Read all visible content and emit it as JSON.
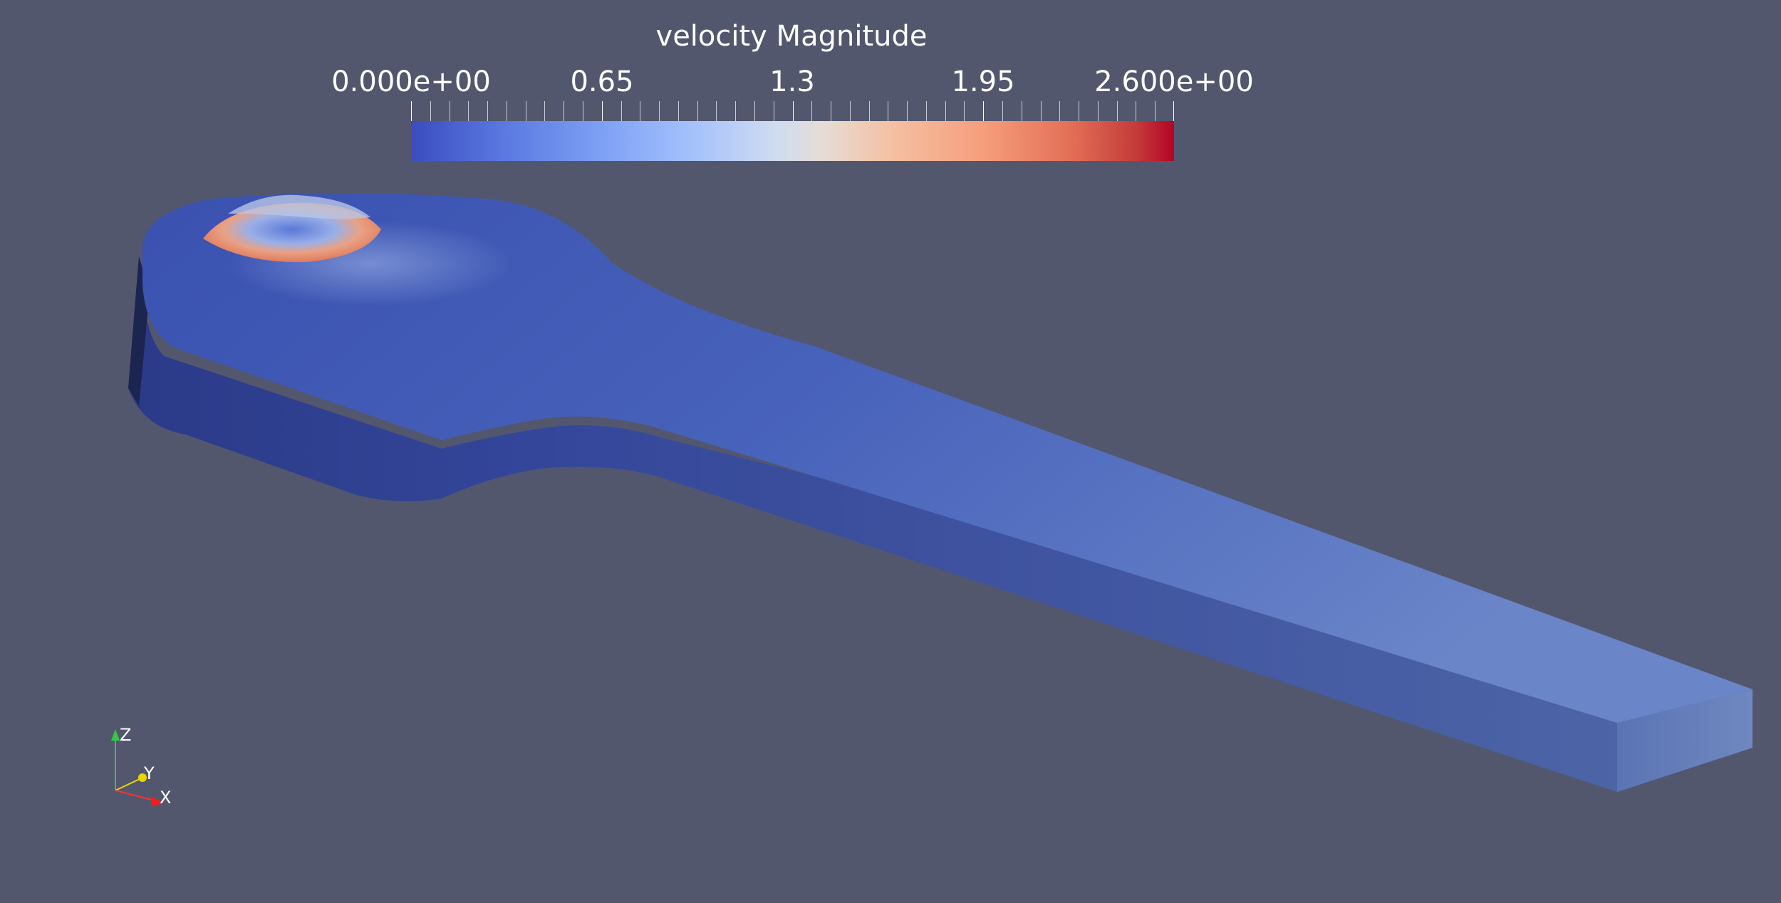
{
  "scalar_bar": {
    "title": "velocity Magnitude",
    "labels": [
      "0.000e+00",
      "0.65",
      "1.3",
      "1.95",
      "2.600e+00"
    ],
    "range": [
      0,
      2.6
    ],
    "colormap": "Cool to Warm",
    "colors": [
      "#3b4cc0",
      "#dddddd",
      "#b40426"
    ]
  },
  "background_color": "#52576e",
  "orientation_axes": {
    "x_label": "X",
    "y_label": "Y",
    "z_label": "Z"
  }
}
